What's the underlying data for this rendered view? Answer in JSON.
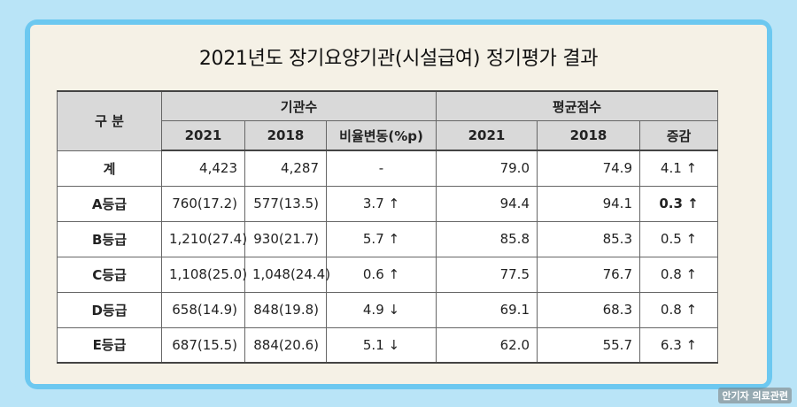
{
  "title": "2021년도 장기요양기관(시설급여) 정기평가 결과",
  "header": {
    "category": "구 분",
    "group_institutions": "기관수",
    "group_score": "평균점수",
    "sub": [
      "2021",
      "2018",
      "비율변동(%p)",
      "2021",
      "2018",
      "증감"
    ]
  },
  "rows": [
    {
      "label": "계",
      "c2021": "4,423",
      "c2018": "4,287",
      "change": "-",
      "s2021": "79.0",
      "s2018": "74.9",
      "diff": "4.1 ↑"
    },
    {
      "label": "A등급",
      "c2021": "760(17.2)",
      "c2018": "577(13.5)",
      "change": "3.7 ↑",
      "s2021": "94.4",
      "s2018": "94.1",
      "diff": "0.3 ↑"
    },
    {
      "label": "B등급",
      "c2021": "1,210(27.4)",
      "c2018": "930(21.7)",
      "change": "5.7 ↑",
      "s2021": "85.8",
      "s2018": "85.3",
      "diff": "0.5 ↑"
    },
    {
      "label": "C등급",
      "c2021": "1,108(25.0)",
      "c2018": "1,048(24.4)",
      "change": "0.6 ↑",
      "s2021": "77.5",
      "s2018": "76.7",
      "diff": "0.8 ↑"
    },
    {
      "label": "D등급",
      "c2021": "658(14.9)",
      "c2018": "848(19.8)",
      "change": "4.9 ↓",
      "s2021": "69.1",
      "s2018": "68.3",
      "diff": "0.8 ↑"
    },
    {
      "label": "E등급",
      "c2021": "687(15.5)",
      "c2018": "884(20.6)",
      "change": "5.1 ↓",
      "s2021": "62.0",
      "s2018": "55.7",
      "diff": "6.3 ↑"
    }
  ],
  "watermark": "안기자 의료관련"
}
